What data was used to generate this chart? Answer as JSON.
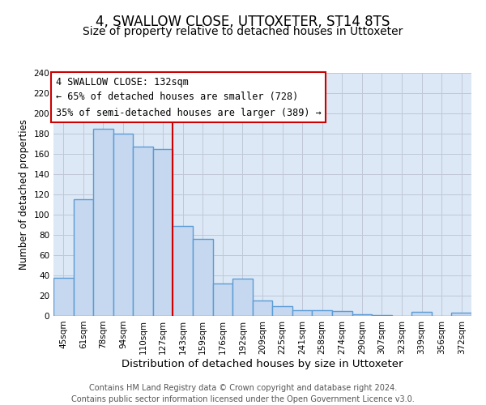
{
  "title": "4, SWALLOW CLOSE, UTTOXETER, ST14 8TS",
  "subtitle": "Size of property relative to detached houses in Uttoxeter",
  "xlabel": "Distribution of detached houses by size in Uttoxeter",
  "ylabel": "Number of detached properties",
  "footer_lines": [
    "Contains HM Land Registry data © Crown copyright and database right 2024.",
    "Contains public sector information licensed under the Open Government Licence v3.0."
  ],
  "categories": [
    "45sqm",
    "61sqm",
    "78sqm",
    "94sqm",
    "110sqm",
    "127sqm",
    "143sqm",
    "159sqm",
    "176sqm",
    "192sqm",
    "209sqm",
    "225sqm",
    "241sqm",
    "258sqm",
    "274sqm",
    "290sqm",
    "307sqm",
    "323sqm",
    "339sqm",
    "356sqm",
    "372sqm"
  ],
  "values": [
    38,
    115,
    185,
    180,
    167,
    165,
    89,
    76,
    32,
    37,
    15,
    10,
    6,
    6,
    5,
    2,
    1,
    0,
    4,
    0,
    3
  ],
  "bar_color": "#c5d8f0",
  "bar_edge_color": "#5b9bd5",
  "bar_linewidth": 1.0,
  "vline_x": 5.5,
  "vline_color": "#cc0000",
  "vline_linewidth": 1.5,
  "annotation_box_text": "4 SWALLOW CLOSE: 132sqm\n← 65% of detached houses are smaller (728)\n35% of semi-detached houses are larger (389) →",
  "annotation_box_edgecolor": "#cc0000",
  "annotation_box_facecolor": "white",
  "annotation_fontsize": 8.5,
  "ylim": [
    0,
    240
  ],
  "yticks": [
    0,
    20,
    40,
    60,
    80,
    100,
    120,
    140,
    160,
    180,
    200,
    220,
    240
  ],
  "grid_color": "#c0c8d8",
  "background_color": "#dce8f5",
  "title_fontsize": 12,
  "subtitle_fontsize": 10,
  "xlabel_fontsize": 9.5,
  "ylabel_fontsize": 8.5,
  "tick_fontsize": 7.5,
  "footer_fontsize": 7.0
}
